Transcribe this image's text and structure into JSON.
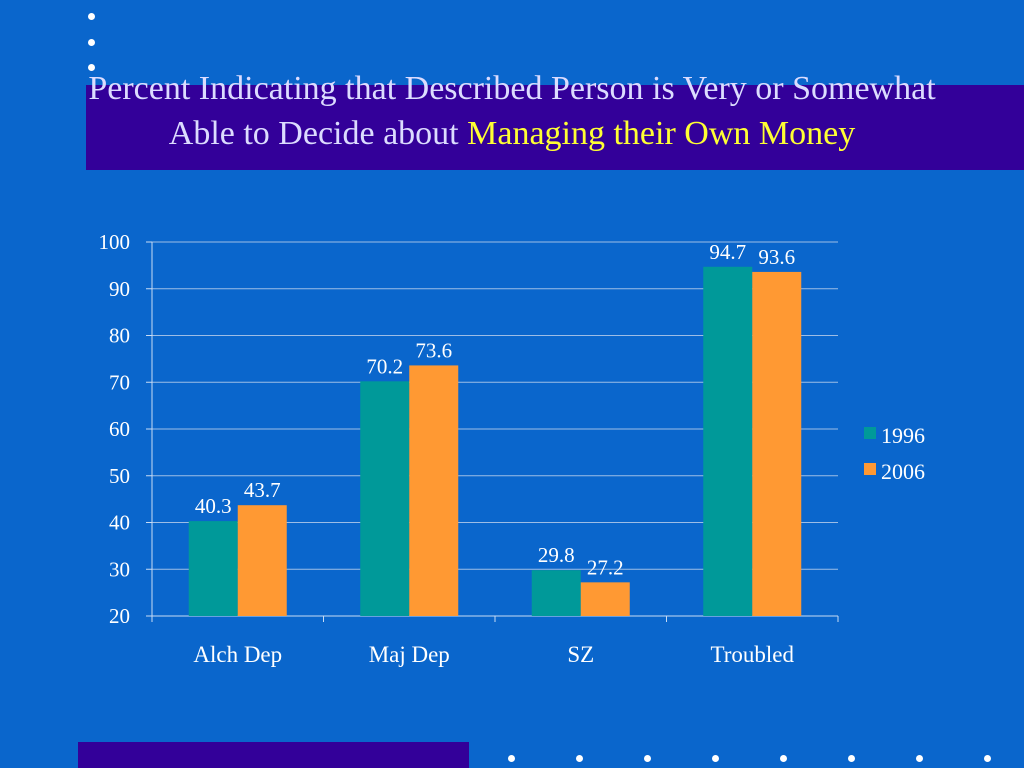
{
  "slide": {
    "title_part1": "Percent Indicating that Described Person is Very or Somewhat Able to Decide about ",
    "title_part2": "Managing their Own Money",
    "background_color": "#0a66cc",
    "band_color": "#330099",
    "highlight_color": "#ffff33"
  },
  "chart_data": {
    "type": "bar",
    "title": "Percent Indicating that Described Person is Very or Somewhat Able to Decide about Managing their Own Money",
    "categories": [
      "Alch Dep",
      "Maj Dep",
      "SZ",
      "Troubled"
    ],
    "series": [
      {
        "name": "1996",
        "values": [
          40.3,
          70.2,
          29.8,
          94.7
        ],
        "color": "#009999"
      },
      {
        "name": "2006",
        "values": [
          43.7,
          73.6,
          27.2,
          93.6
        ],
        "color": "#ff9933"
      }
    ],
    "ylim": [
      20,
      100
    ],
    "yticks": [
      20,
      30,
      40,
      50,
      60,
      70,
      80,
      90,
      100
    ],
    "grid": true,
    "legend_position": "right",
    "xlabel": "",
    "ylabel": ""
  }
}
